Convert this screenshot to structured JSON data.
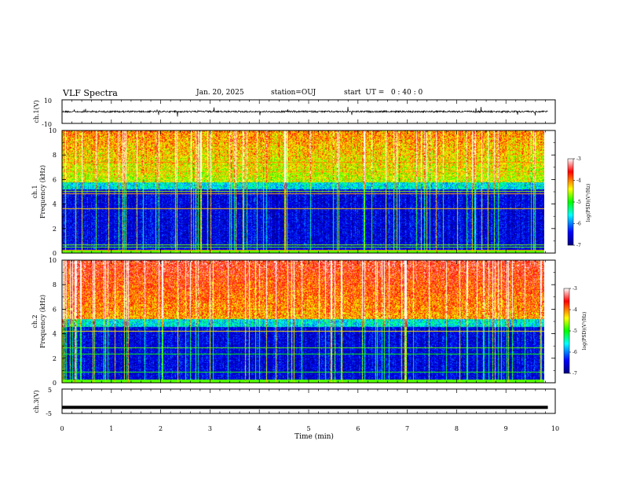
{
  "header": {
    "title": "VLF Spectra",
    "date": "Jan. 20, 2025",
    "station": "station=OUJ",
    "start": "start  UT =   0 : 40 : 0"
  },
  "chart_data": [
    {
      "type": "line",
      "name": "ch1-waveform",
      "ylabel": "ch.1(V)",
      "ylim": [
        -10,
        10
      ],
      "ytick_labels": [
        "10",
        "-10"
      ],
      "x": [
        0,
        9.85
      ],
      "level": 0
    },
    {
      "type": "heatmap",
      "name": "ch1-spectrogram",
      "ylabel_lines": [
        "ch.1",
        "Frequency (kHz)"
      ],
      "ylim": [
        0,
        10
      ],
      "ytick_labels": [
        "0",
        "2",
        "4",
        "6",
        "8",
        "10"
      ],
      "colorbar": {
        "label": "log(PSD)(V²/Hz)",
        "ticks": [
          "-3",
          "-4",
          "-5",
          "-6",
          "-7"
        ],
        "range": [
          -7,
          -3
        ]
      }
    },
    {
      "type": "heatmap",
      "name": "ch2-spectrogram",
      "ylabel_lines": [
        "ch.2",
        "Frequency (kHz)"
      ],
      "ylim": [
        0,
        10
      ],
      "ytick_labels": [
        "0",
        "2",
        "4",
        "6",
        "8",
        "10"
      ],
      "colorbar": {
        "label": "log(PSD)(V²/Hz)",
        "ticks": [
          "-3",
          "-4",
          "-5",
          "-6",
          "-7"
        ],
        "range": [
          -7,
          -3
        ]
      }
    },
    {
      "type": "line",
      "name": "ch3-waveform",
      "ylabel": "ch.3(V)",
      "ylim": [
        -5,
        5
      ],
      "ytick_labels": [
        "5",
        "-5"
      ],
      "x": [
        0,
        9.85
      ],
      "level": -2.5
    }
  ],
  "xaxis": {
    "label": "Time (min)",
    "range": [
      0,
      10
    ],
    "tick_labels": [
      "0",
      "1",
      "2",
      "3",
      "4",
      "5",
      "6",
      "7",
      "8",
      "9",
      "10"
    ]
  }
}
